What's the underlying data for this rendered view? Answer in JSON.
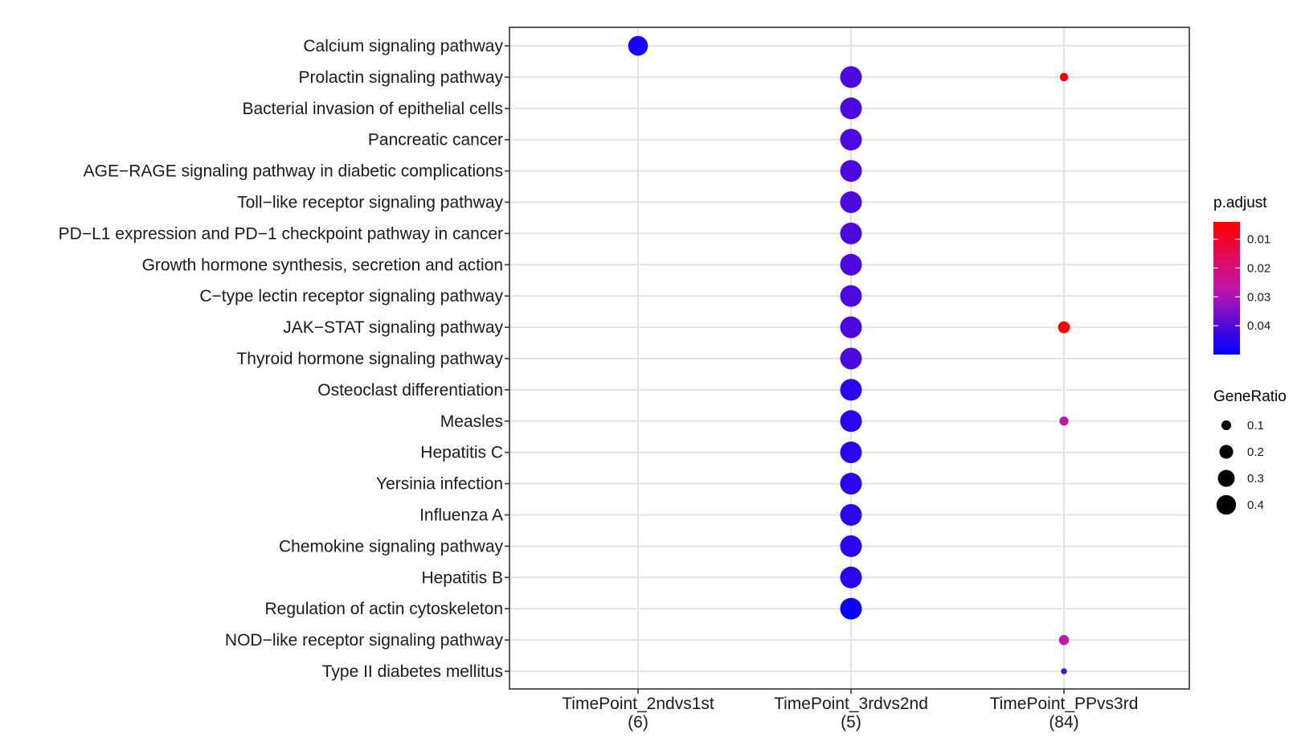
{
  "chart_data": {
    "type": "scatter",
    "x_categories": [
      {
        "name": "TimePoint_2ndvs1st",
        "count": "(6)"
      },
      {
        "name": "TimePoint_3rdvs2nd",
        "count": "(5)"
      },
      {
        "name": "TimePoint_PPvs3rd",
        "count": "(84)"
      }
    ],
    "y_categories": [
      "Calcium signaling pathway",
      "Prolactin signaling pathway",
      "Bacterial invasion of epithelial cells",
      "Pancreatic cancer",
      "AGE−RAGE signaling pathway in diabetic complications",
      "Toll−like receptor signaling pathway",
      "PD−L1 expression and PD−1 checkpoint pathway in cancer",
      "Growth hormone synthesis, secretion and action",
      "C−type lectin receptor signaling pathway",
      "JAK−STAT signaling pathway",
      "Thyroid hormone signaling pathway",
      "Osteoclast differentiation",
      "Measles",
      "Hepatitis C",
      "Yersinia infection",
      "Influenza A",
      "Chemokine signaling pathway",
      "Hepatitis B",
      "Regulation of actin cytoskeleton",
      "NOD−like receptor signaling pathway",
      "Type II diabetes mellitus"
    ],
    "points": [
      {
        "x": "TimePoint_2ndvs1st",
        "y": "Calcium signaling pathway",
        "gene_ratio": 0.33,
        "p_adjust": 0.047
      },
      {
        "x": "TimePoint_3rdvs2nd",
        "y": "Prolactin signaling pathway",
        "gene_ratio": 0.4,
        "p_adjust": 0.041
      },
      {
        "x": "TimePoint_3rdvs2nd",
        "y": "Bacterial invasion of epithelial cells",
        "gene_ratio": 0.4,
        "p_adjust": 0.041
      },
      {
        "x": "TimePoint_3rdvs2nd",
        "y": "Pancreatic cancer",
        "gene_ratio": 0.4,
        "p_adjust": 0.041
      },
      {
        "x": "TimePoint_3rdvs2nd",
        "y": "AGE−RAGE signaling pathway in diabetic complications",
        "gene_ratio": 0.4,
        "p_adjust": 0.041
      },
      {
        "x": "TimePoint_3rdvs2nd",
        "y": "Toll−like receptor signaling pathway",
        "gene_ratio": 0.4,
        "p_adjust": 0.041
      },
      {
        "x": "TimePoint_3rdvs2nd",
        "y": "PD−L1 expression and PD−1 checkpoint pathway in cancer",
        "gene_ratio": 0.4,
        "p_adjust": 0.041
      },
      {
        "x": "TimePoint_3rdvs2nd",
        "y": "Growth hormone synthesis, secretion and action",
        "gene_ratio": 0.4,
        "p_adjust": 0.041
      },
      {
        "x": "TimePoint_3rdvs2nd",
        "y": "C−type lectin receptor signaling pathway",
        "gene_ratio": 0.4,
        "p_adjust": 0.041
      },
      {
        "x": "TimePoint_3rdvs2nd",
        "y": "JAK−STAT signaling pathway",
        "gene_ratio": 0.4,
        "p_adjust": 0.041
      },
      {
        "x": "TimePoint_3rdvs2nd",
        "y": "Thyroid hormone signaling pathway",
        "gene_ratio": 0.4,
        "p_adjust": 0.041
      },
      {
        "x": "TimePoint_3rdvs2nd",
        "y": "Osteoclast differentiation",
        "gene_ratio": 0.4,
        "p_adjust": 0.045
      },
      {
        "x": "TimePoint_3rdvs2nd",
        "y": "Measles",
        "gene_ratio": 0.4,
        "p_adjust": 0.045
      },
      {
        "x": "TimePoint_3rdvs2nd",
        "y": "Hepatitis C",
        "gene_ratio": 0.4,
        "p_adjust": 0.045
      },
      {
        "x": "TimePoint_3rdvs2nd",
        "y": "Yersinia infection",
        "gene_ratio": 0.4,
        "p_adjust": 0.045
      },
      {
        "x": "TimePoint_3rdvs2nd",
        "y": "Influenza A",
        "gene_ratio": 0.4,
        "p_adjust": 0.045
      },
      {
        "x": "TimePoint_3rdvs2nd",
        "y": "Chemokine signaling pathway",
        "gene_ratio": 0.4,
        "p_adjust": 0.045
      },
      {
        "x": "TimePoint_3rdvs2nd",
        "y": "Hepatitis B",
        "gene_ratio": 0.4,
        "p_adjust": 0.045
      },
      {
        "x": "TimePoint_3rdvs2nd",
        "y": "Regulation of actin cytoskeleton",
        "gene_ratio": 0.4,
        "p_adjust": 0.049
      },
      {
        "x": "TimePoint_PPvs3rd",
        "y": "Prolactin signaling pathway",
        "gene_ratio": 0.06,
        "p_adjust": 0.005
      },
      {
        "x": "TimePoint_PPvs3rd",
        "y": "JAK−STAT signaling pathway",
        "gene_ratio": 0.12,
        "p_adjust": 0.005
      },
      {
        "x": "TimePoint_PPvs3rd",
        "y": "Measles",
        "gene_ratio": 0.07,
        "p_adjust": 0.027
      },
      {
        "x": "TimePoint_PPvs3rd",
        "y": "NOD−like receptor signaling pathway",
        "gene_ratio": 0.085,
        "p_adjust": 0.027
      },
      {
        "x": "TimePoint_PPvs3rd",
        "y": "Type II diabetes mellitus",
        "gene_ratio": 0.03,
        "p_adjust": 0.04
      }
    ],
    "color_legend": {
      "title": "p.adjust",
      "breaks": [
        0.01,
        0.02,
        0.03,
        0.04
      ],
      "labels": [
        "0.01",
        "0.02",
        "0.03",
        "0.04"
      ],
      "range": [
        0.004,
        0.05
      ],
      "low_color": "#ff0000",
      "high_color": "#0000ff"
    },
    "size_legend": {
      "title": "GeneRatio",
      "breaks": [
        0.1,
        0.2,
        0.3,
        0.4
      ],
      "labels": [
        "0.1",
        "0.2",
        "0.3",
        "0.4"
      ]
    },
    "grid": true,
    "legend_position": "right"
  }
}
